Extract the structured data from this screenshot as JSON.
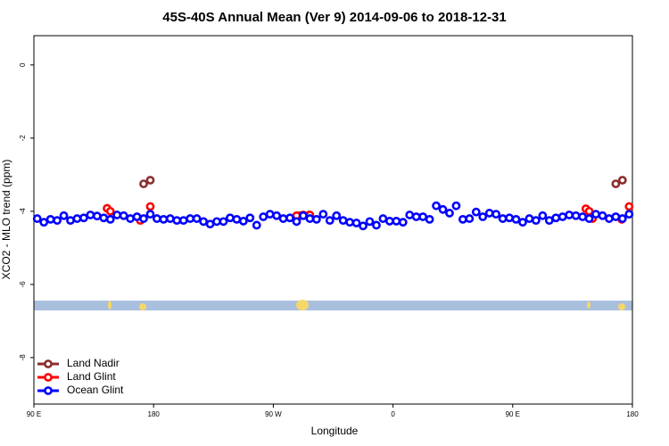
{
  "chart_data": {
    "type": "scatter",
    "title": "45S-40S Annual Mean (Ver 9)   2014-09-06 to 2018-12-31",
    "x_label": "Longitude",
    "y_label": "XCO2 - MLO trend (ppm)",
    "xlim": [
      90,
      540
    ],
    "ylim": [
      -9.27,
      0.8
    ],
    "xticks": [
      {
        "value": 90,
        "label": "90 E"
      },
      {
        "value": 180,
        "label": "180"
      },
      {
        "value": 270,
        "label": "90 W"
      },
      {
        "value": 360,
        "label": "0"
      },
      {
        "value": 450,
        "label": "90 E"
      },
      {
        "value": 540,
        "label": "180"
      }
    ],
    "yticks": [
      0,
      -2,
      -4,
      -6,
      -8
    ],
    "legend": "bottom-left",
    "series": [
      {
        "name": "Land Nadir",
        "color": "#8b2e2e",
        "x": [
          172.5,
          177.5,
          290,
          297,
          527.5,
          532.5
        ],
        "values": [
          -3.25,
          -3.15,
          -4.12,
          -4.1,
          -3.25,
          -3.15
        ]
      },
      {
        "name": "Land Glint",
        "color": "#ff0000",
        "x": [
          145,
          147.5,
          170,
          177.5,
          287.5,
          292.5,
          297.5,
          505,
          507.5,
          510,
          532,
          537.5
        ],
        "values": [
          -3.92,
          -4.0,
          -4.25,
          -3.87,
          -4.12,
          -4.1,
          -4.1,
          -3.93,
          -4.0,
          -4.2,
          -4.22,
          -3.87
        ]
      },
      {
        "name": "Ocean Glint",
        "color": "#0000ff",
        "x": [
          92.5,
          97.5,
          102.5,
          107.5,
          112.5,
          117.5,
          122.5,
          127.5,
          132.5,
          137.5,
          142.5,
          147.5,
          152.5,
          157.5,
          162.5,
          167.5,
          172.5,
          177.5,
          182.5,
          187.5,
          192.5,
          197.5,
          202.5,
          207.5,
          212.5,
          217.5,
          222.5,
          227.5,
          232.5,
          237.5,
          242.5,
          247.5,
          252.5,
          257.5,
          262.5,
          267.5,
          272.5,
          277.5,
          282.5,
          287.5,
          292.5,
          297.5,
          302.5,
          307.5,
          312.5,
          317.5,
          322.5,
          327.5,
          332.5,
          337.5,
          342.5,
          347.5,
          352.5,
          357.5,
          362.5,
          367.5,
          372.5,
          377.5,
          382.5,
          387.5,
          392.5,
          397.5,
          402.5,
          407.5,
          412.5,
          417.5,
          422.5,
          427.5,
          432.5,
          437.5,
          442.5,
          447.5,
          452.5,
          457.5,
          462.5,
          467.5,
          472.5,
          477.5,
          482.5,
          487.5,
          492.5,
          497.5,
          502.5,
          507.5,
          512.5,
          517.5,
          522.5,
          527.5,
          532.5,
          537.5
        ],
        "values": [
          -4.2,
          -4.3,
          -4.22,
          -4.25,
          -4.12,
          -4.25,
          -4.2,
          -4.18,
          -4.1,
          -4.13,
          -4.18,
          -4.22,
          -4.1,
          -4.12,
          -4.2,
          -4.15,
          -4.2,
          -4.08,
          -4.2,
          -4.22,
          -4.2,
          -4.25,
          -4.25,
          -4.2,
          -4.2,
          -4.28,
          -4.35,
          -4.28,
          -4.28,
          -4.18,
          -4.22,
          -4.27,
          -4.18,
          -4.38,
          -4.15,
          -4.08,
          -4.12,
          -4.2,
          -4.18,
          -4.28,
          -4.12,
          -4.2,
          -4.22,
          -4.08,
          -4.25,
          -4.12,
          -4.25,
          -4.3,
          -4.32,
          -4.4,
          -4.28,
          -4.38,
          -4.2,
          -4.27,
          -4.27,
          -4.3,
          -4.1,
          -4.15,
          -4.15,
          -4.22,
          -3.85,
          -3.95,
          -4.05,
          -3.85,
          -4.22,
          -4.2,
          -4.02,
          -4.15,
          -4.05,
          -4.08,
          -4.2,
          -4.18,
          -4.22,
          -4.3,
          -4.2,
          -4.25,
          -4.12,
          -4.25,
          -4.18,
          -4.15,
          -4.1,
          -4.12,
          -4.15,
          -4.2,
          -4.08,
          -4.12,
          -4.2,
          -4.15,
          -4.2,
          -4.08
        ]
      }
    ]
  }
}
